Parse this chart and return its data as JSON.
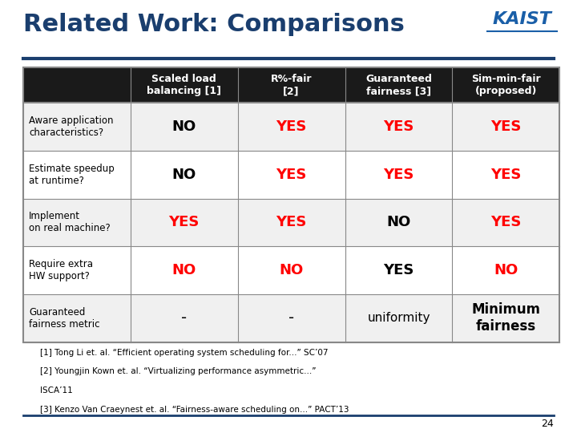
{
  "title": "Related Work: Comparisons",
  "title_color": "#1a3e6e",
  "bg_color": "#ffffff",
  "header_bg": "#1a1a1a",
  "header_text_color": "#ffffff",
  "row_bg_odd": "#f0f0f0",
  "row_bg_even": "#ffffff",
  "border_color": "#888888",
  "col_headers": [
    "Scaled load\nbalancing [1]",
    "R%-fair\n[2]",
    "Guaranteed\nfairness [3]",
    "Sim-min-fair\n(proposed)"
  ],
  "row_labels": [
    "Aware application\ncharacteristics?",
    "Estimate speedup\nat runtime?",
    "Implement\non real machine?",
    "Require extra\nHW support?",
    "Guaranteed\nfairness metric"
  ],
  "cell_data": [
    [
      "NO",
      "YES",
      "YES",
      "YES"
    ],
    [
      "NO",
      "YES",
      "YES",
      "YES"
    ],
    [
      "YES",
      "YES",
      "NO",
      "YES"
    ],
    [
      "NO",
      "NO",
      "YES",
      "NO"
    ],
    [
      "-",
      "-",
      "uniformity",
      "Minimum\nfairness"
    ]
  ],
  "cell_colors": [
    [
      "black",
      "red",
      "red",
      "red"
    ],
    [
      "black",
      "red",
      "red",
      "red"
    ],
    [
      "red",
      "red",
      "black",
      "red"
    ],
    [
      "red",
      "red",
      "black",
      "red"
    ],
    [
      "black",
      "black",
      "black",
      "black"
    ]
  ],
  "footnotes": [
    "[1] Tong Li et. al. “Efficient operating system scheduling for...” SC’07",
    "[2] Youngjin Kown et. al. “Virtualizing performance asymmetric...”",
    "ISCA’11",
    "[3] Kenzo Van Craeynest et. al. “Fairness-aware scheduling on...” PACT’13"
  ],
  "page_num": "24",
  "accent_line_color": "#1a3e6e",
  "kaist_blue": "#1a5fa8"
}
